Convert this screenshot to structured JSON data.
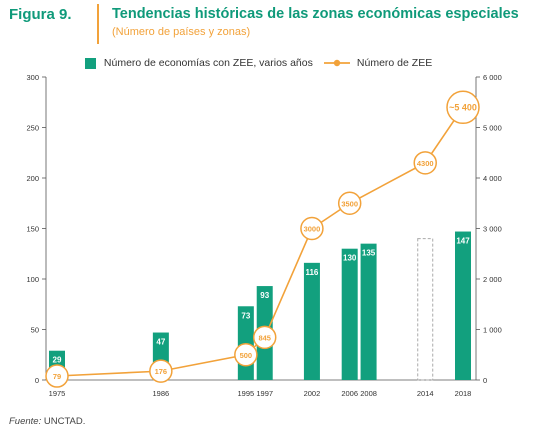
{
  "figure": {
    "label": "Figura 9.",
    "title": "Tendencias históricas de las zonas económicas especiales",
    "subtitle": "(Número de países y zonas)",
    "source_label": "Fuente:",
    "source_text": "UNCTAD."
  },
  "colors": {
    "bar": "#12a07e",
    "line": "#f2a23a",
    "axis": "#555555",
    "projection": "#aaaaaa"
  },
  "chart_data": {
    "type": "bar+line",
    "legend": [
      {
        "label": "Número de economías con ZEE, varios años",
        "kind": "bar"
      },
      {
        "label": "Número de ZEE",
        "kind": "line"
      }
    ],
    "legend_placement": "top-center",
    "years": [
      1975,
      1986,
      1995,
      1997,
      2002,
      2006,
      2008,
      2014,
      2018
    ],
    "x_range": [
      1975,
      2018
    ],
    "bars": {
      "name": "Número de economías con ZEE, varios años",
      "axis": "left",
      "points": [
        {
          "x": 1975,
          "value": 29,
          "label": "29"
        },
        {
          "x": 1986,
          "value": 47,
          "label": "47"
        },
        {
          "x": 1995,
          "value": 73,
          "label": "73"
        },
        {
          "x": 1997,
          "value": 93,
          "label": "93"
        },
        {
          "x": 2002,
          "value": 116,
          "label": "116"
        },
        {
          "x": 2006,
          "value": 130,
          "label": "130"
        },
        {
          "x": 2008,
          "value": 135,
          "label": "135"
        },
        {
          "x": 2018,
          "value": 147,
          "label": "147"
        }
      ],
      "projection": {
        "x": 2014,
        "value": 140
      }
    },
    "line": {
      "name": "Número de ZEE",
      "axis": "right",
      "points": [
        {
          "x": 1975,
          "value": 79,
          "label": "79"
        },
        {
          "x": 1986,
          "value": 176,
          "label": "176"
        },
        {
          "x": 1995,
          "value": 500,
          "label": "500"
        },
        {
          "x": 1997,
          "value": 845,
          "label": "845"
        },
        {
          "x": 2002,
          "value": 3000,
          "label": "3000"
        },
        {
          "x": 2006,
          "value": 3500,
          "label": "3500"
        },
        {
          "x": 2014,
          "value": 4300,
          "label": "4300"
        },
        {
          "x": 2018,
          "value": 5400,
          "label": "~5 400"
        }
      ]
    },
    "left_axis": {
      "min": 0,
      "max": 300,
      "ticks": [
        0,
        50,
        100,
        150,
        200,
        250,
        300
      ],
      "tick_labels": [
        "0",
        "50",
        "100",
        "150",
        "200",
        "250",
        "300"
      ]
    },
    "right_axis": {
      "min": 0,
      "max": 6000,
      "ticks": [
        0,
        1000,
        2000,
        3000,
        4000,
        5000,
        6000
      ],
      "tick_labels": [
        "0",
        "1 000",
        "2 000",
        "3 000",
        "4 000",
        "5 000",
        "6 000"
      ]
    },
    "grid": false
  }
}
